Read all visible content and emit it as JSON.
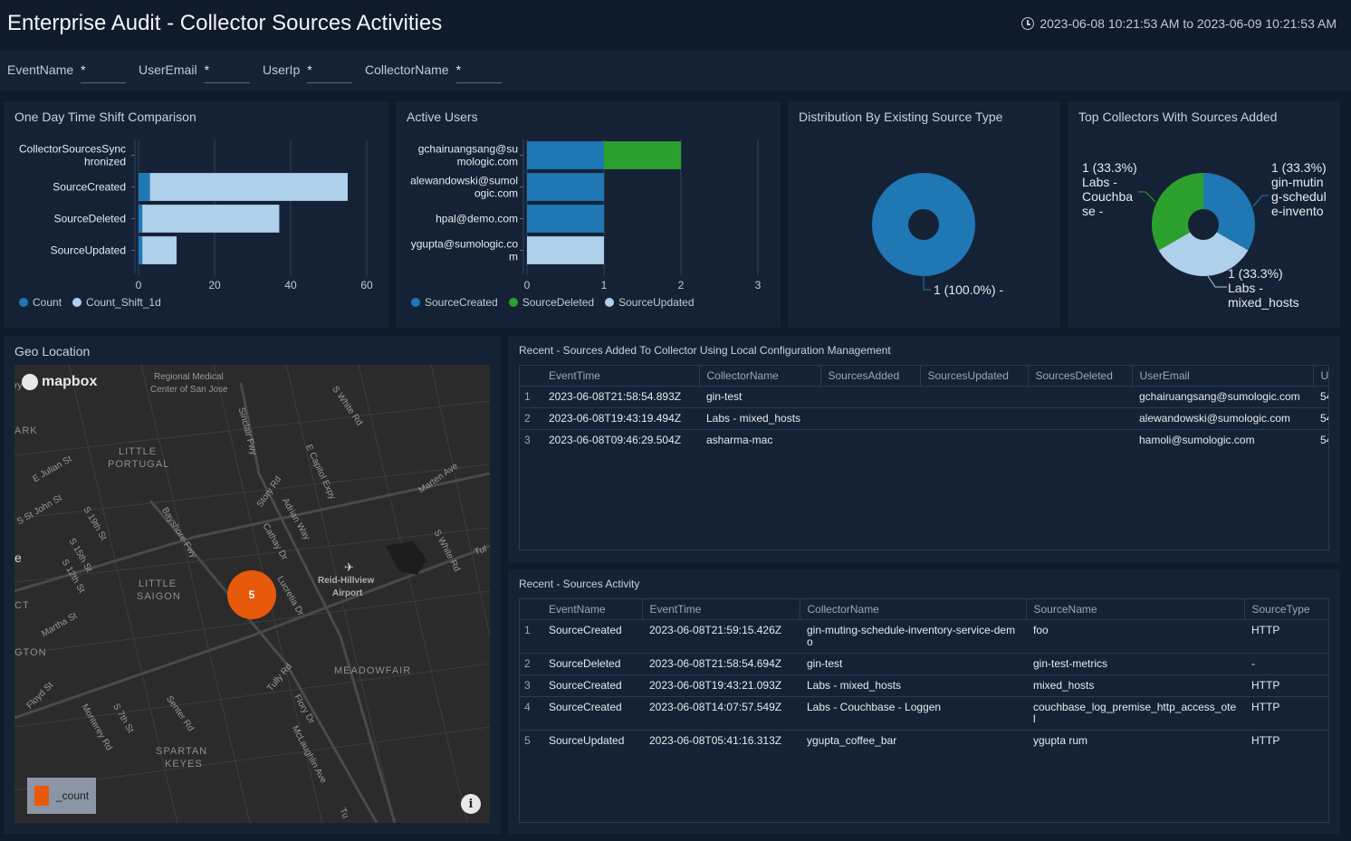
{
  "header": {
    "title": "Enterprise Audit - Collector Sources Activities",
    "time_range": "2023-06-08 10:21:53 AM to 2023-06-09 10:21:53 AM"
  },
  "filters": [
    {
      "label": "EventName",
      "value": "*"
    },
    {
      "label": "UserEmail",
      "value": "*"
    },
    {
      "label": "UserIp",
      "value": "*"
    },
    {
      "label": "CollectorName",
      "value": "*"
    }
  ],
  "panels": {
    "time_shift": {
      "title": "One Day Time Shift Comparison"
    },
    "active_users": {
      "title": "Active Users"
    },
    "distribution": {
      "title": "Distribution By Existing Source Type"
    },
    "top_collectors": {
      "title": "Top Collectors With Sources Added"
    },
    "geo": {
      "title": "Geo Location"
    },
    "recent_added": {
      "title": "Recent - Sources Added To Collector Using Local Configuration Management"
    },
    "recent_activity": {
      "title": "Recent - Sources Activity"
    }
  },
  "colors": {
    "count": "#1f77b4",
    "count_shift": "#aed0ea",
    "deleted": "#2ca02c"
  },
  "chart_data": [
    {
      "type": "bar",
      "orientation": "horizontal",
      "title": "One Day Time Shift Comparison",
      "categories": [
        "CollectorSourcesSynchronized",
        "SourceCreated",
        "SourceDeleted",
        "SourceUpdated"
      ],
      "category_labels": [
        [
          "CollectorSourcesSync",
          "hronized"
        ],
        [
          "SourceCreated"
        ],
        [
          "SourceDeleted"
        ],
        [
          "SourceUpdated"
        ]
      ],
      "series": [
        {
          "name": "Count",
          "values": [
            0,
            3,
            1,
            1
          ]
        },
        {
          "name": "Count_Shift_1d",
          "values": [
            0,
            55,
            37,
            10
          ]
        }
      ],
      "xticks": [
        "0",
        "20",
        "40",
        "60"
      ],
      "xlim": [
        0,
        60
      ],
      "grid": true,
      "legend": "bottom-left"
    },
    {
      "type": "bar",
      "orientation": "horizontal",
      "stacked": true,
      "title": "Active Users",
      "categories": [
        "gchairuangsang@sumologic.com",
        "alewandowski@sumologic.com",
        "hpal@demo.com",
        "ygupta@sumologic.com"
      ],
      "category_labels": [
        [
          "gchairuangsang@su",
          "mologic.com"
        ],
        [
          "alewandowski@sumol",
          "ogic.com"
        ],
        [
          "hpal@demo.com"
        ],
        [
          "ygupta@sumologic.co",
          "m"
        ]
      ],
      "series": [
        {
          "name": "SourceCreated",
          "values": [
            1,
            1,
            1,
            0
          ]
        },
        {
          "name": "SourceDeleted",
          "values": [
            1,
            0,
            0,
            0
          ]
        },
        {
          "name": "SourceUpdated",
          "values": [
            0,
            0,
            0,
            1
          ]
        }
      ],
      "xticks": [
        "0",
        "1",
        "2",
        "3"
      ],
      "xlim": [
        0,
        3
      ],
      "grid": true,
      "legend": "bottom-left"
    },
    {
      "type": "pie",
      "donut": true,
      "title": "Distribution By Existing Source Type",
      "slices": [
        {
          "label": "1 (100.0%) -",
          "value": 1
        }
      ]
    },
    {
      "type": "pie",
      "donut": true,
      "title": "Top Collectors With Sources Added",
      "slices": [
        {
          "label": [
            "1 (33.3%)",
            "gin-mutin",
            "g-schedul",
            "e-invento"
          ],
          "value": 1
        },
        {
          "label": [
            "1 (33.3%)",
            "Labs -",
            "mixed_hosts"
          ],
          "value": 1
        },
        {
          "label": [
            "1 (33.3%)",
            "Labs -",
            "Couchba",
            "se -"
          ],
          "value": 1
        }
      ]
    }
  ],
  "map": {
    "provider": "mapbox",
    "cluster_count": "5",
    "legend_label": "_count",
    "labels": [
      {
        "text": "Regional Medical",
        "cls": ""
      },
      {
        "text": "Center of San Jose",
        "cls": ""
      },
      {
        "text": "LITTLE",
        "cls": "map-area"
      },
      {
        "text": "PORTUGAL",
        "cls": "map-area"
      },
      {
        "text": "LITTLE",
        "cls": "map-area"
      },
      {
        "text": "SAIGON",
        "cls": "map-area"
      },
      {
        "text": "MEADOWFAIR",
        "cls": "map-area"
      },
      {
        "text": "SPARTAN",
        "cls": "map-area"
      },
      {
        "text": "KEYES",
        "cls": "map-area"
      },
      {
        "text": "Reid-Hillview",
        "cls": ""
      },
      {
        "text": "Airport",
        "cls": ""
      },
      {
        "text": "ARK",
        "cls": "map-area"
      },
      {
        "text": "GTON",
        "cls": "map-area"
      },
      {
        "text": "CT",
        "cls": "map-area"
      },
      {
        "text": "S White Rd",
        "cls": ""
      },
      {
        "text": "Sinclair Fwy",
        "cls": ""
      },
      {
        "text": "E Capitol Expy",
        "cls": ""
      },
      {
        "text": "Story Rd",
        "cls": ""
      },
      {
        "text": "Adrian Way",
        "cls": ""
      },
      {
        "text": "Cathay Dr",
        "cls": ""
      },
      {
        "text": "Bayshore Fwy",
        "cls": ""
      },
      {
        "text": "Martha St",
        "cls": ""
      },
      {
        "text": "Tully Rd",
        "cls": ""
      },
      {
        "text": "Flory Dr",
        "cls": ""
      },
      {
        "text": "McLaughlin Ave",
        "cls": ""
      },
      {
        "text": "Senter Rd",
        "cls": ""
      },
      {
        "text": "S 7th St",
        "cls": ""
      },
      {
        "text": "Monterey Rd",
        "cls": ""
      },
      {
        "text": "Floyd St",
        "cls": ""
      },
      {
        "text": "E Julian St",
        "cls": ""
      },
      {
        "text": "S St John St",
        "cls": ""
      },
      {
        "text": "S 19th St",
        "cls": ""
      },
      {
        "text": "S 15th St",
        "cls": ""
      },
      {
        "text": "S 12th St",
        "cls": ""
      },
      {
        "text": "Marten Ave",
        "cls": ""
      },
      {
        "text": "S White Rd",
        "cls": ""
      },
      {
        "text": "Tu",
        "cls": ""
      },
      {
        "text": "ry",
        "cls": ""
      },
      {
        "text": "e",
        "cls": ""
      },
      {
        "text": "Tul",
        "cls": ""
      },
      {
        "text": "Lucretia Dr",
        "cls": ""
      }
    ]
  },
  "table_added": {
    "columns": [
      "EventTime",
      "CollectorName",
      "SourcesAdded",
      "SourcesUpdated",
      "SourcesDeleted",
      "UserEmail",
      "Us"
    ],
    "rows": [
      {
        "idx": "1",
        "cells": [
          "2023-06-08T21:58:54.893Z",
          "gin-test",
          "",
          "",
          "",
          "gchairuangsang@sumologic.com",
          "54"
        ]
      },
      {
        "idx": "2",
        "cells": [
          "2023-06-08T19:43:19.494Z",
          "Labs - mixed_hosts",
          "",
          "",
          "",
          "alewandowski@sumologic.com",
          "54"
        ]
      },
      {
        "idx": "3",
        "cells": [
          "2023-06-08T09:46:29.504Z",
          "asharma-mac",
          "",
          "",
          "",
          "hamoli@sumologic.com",
          "54"
        ]
      }
    ]
  },
  "table_activity": {
    "columns": [
      "EventName",
      "EventTime",
      "CollectorName",
      "SourceName",
      "SourceType"
    ],
    "rows": [
      {
        "idx": "1",
        "cells": [
          "SourceCreated",
          "2023-06-08T21:59:15.426Z",
          "gin-muting-schedule-inventory-service-demo",
          "foo",
          "HTTP"
        ]
      },
      {
        "idx": "2",
        "cells": [
          "SourceDeleted",
          "2023-06-08T21:58:54.694Z",
          "gin-test",
          "gin-test-metrics",
          "-"
        ]
      },
      {
        "idx": "3",
        "cells": [
          "SourceCreated",
          "2023-06-08T19:43:21.093Z",
          "Labs - mixed_hosts",
          "mixed_hosts",
          "HTTP"
        ]
      },
      {
        "idx": "4",
        "cells": [
          "SourceCreated",
          "2023-06-08T14:07:57.549Z",
          "Labs - Couchbase - Loggen",
          "couchbase_log_premise_http_access_otel",
          "HTTP"
        ]
      },
      {
        "idx": "5",
        "cells": [
          "SourceUpdated",
          "2023-06-08T05:41:16.313Z",
          "ygupta_coffee_bar",
          "ygupta rum",
          "HTTP"
        ]
      }
    ]
  }
}
